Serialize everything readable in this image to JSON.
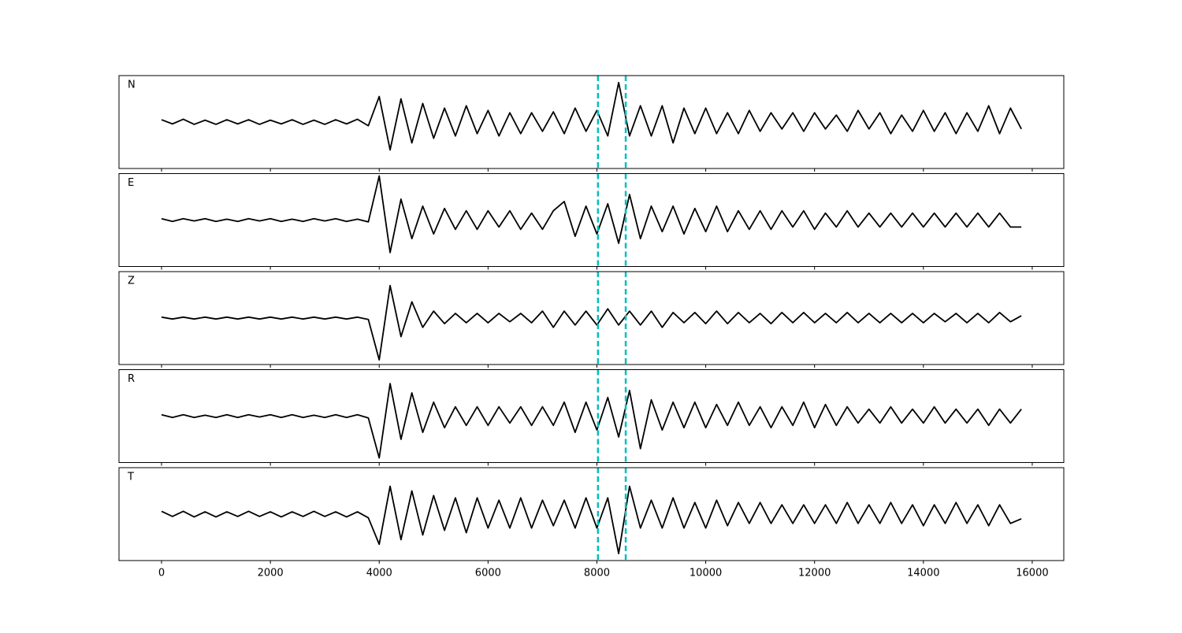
{
  "chart_data": {
    "type": "line",
    "x": [
      0,
      200,
      400,
      600,
      800,
      1000,
      1200,
      1400,
      1600,
      1800,
      2000,
      2200,
      2400,
      2600,
      2800,
      3000,
      3200,
      3400,
      3600,
      3800,
      4000,
      4200,
      4400,
      4600,
      4800,
      5000,
      5200,
      5400,
      5600,
      5800,
      6000,
      6200,
      6400,
      6600,
      6800,
      7000,
      7200,
      7400,
      7600,
      7800,
      8000,
      8200,
      8400,
      8600,
      8800,
      9000,
      9200,
      9400,
      9600,
      9800,
      10000,
      10200,
      10400,
      10600,
      10800,
      11000,
      11200,
      11400,
      11600,
      11800,
      12000,
      12200,
      12400,
      12600,
      12800,
      13000,
      13200,
      13400,
      13600,
      13800,
      14000,
      14200,
      14400,
      14600,
      14800,
      15000,
      15200,
      15400,
      15600,
      15800
    ],
    "series": [
      {
        "name": "N",
        "color": "#000000",
        "values": [
          0.05,
          -0.04,
          0.06,
          -0.05,
          0.04,
          -0.05,
          0.05,
          -0.04,
          0.05,
          -0.05,
          0.04,
          -0.04,
          0.05,
          -0.05,
          0.04,
          -0.05,
          0.05,
          -0.04,
          0.06,
          -0.08,
          0.55,
          -0.6,
          0.5,
          -0.45,
          0.4,
          -0.35,
          0.3,
          -0.3,
          0.35,
          -0.25,
          0.25,
          -0.3,
          0.2,
          -0.25,
          0.2,
          -0.2,
          0.22,
          -0.25,
          0.3,
          -0.2,
          0.25,
          -0.3,
          0.85,
          -0.3,
          0.35,
          -0.3,
          0.35,
          -0.45,
          0.3,
          -0.25,
          0.3,
          -0.25,
          0.2,
          -0.25,
          0.25,
          -0.2,
          0.2,
          -0.15,
          0.2,
          -0.2,
          0.2,
          -0.15,
          0.15,
          -0.2,
          0.25,
          -0.15,
          0.2,
          -0.25,
          0.15,
          -0.2,
          0.25,
          -0.2,
          0.2,
          -0.25,
          0.2,
          -0.2,
          0.35,
          -0.25,
          0.3,
          -0.15
        ]
      },
      {
        "name": "E",
        "color": "#000000",
        "values": [
          0.03,
          -0.03,
          0.03,
          -0.02,
          0.03,
          -0.03,
          0.02,
          -0.03,
          0.03,
          -0.02,
          0.03,
          -0.03,
          0.02,
          -0.03,
          0.03,
          -0.02,
          0.03,
          -0.03,
          0.02,
          -0.04,
          0.95,
          -0.7,
          0.45,
          -0.4,
          0.3,
          -0.3,
          0.25,
          -0.2,
          0.2,
          -0.2,
          0.2,
          -0.15,
          0.2,
          -0.2,
          0.15,
          -0.2,
          0.2,
          0.4,
          -0.35,
          0.3,
          -0.3,
          0.35,
          -0.5,
          0.55,
          -0.4,
          0.3,
          -0.25,
          0.3,
          -0.3,
          0.25,
          -0.25,
          0.3,
          -0.25,
          0.2,
          -0.2,
          0.2,
          -0.2,
          0.2,
          -0.15,
          0.2,
          -0.2,
          0.15,
          -0.15,
          0.2,
          -0.15,
          0.15,
          -0.15,
          0.15,
          -0.15,
          0.15,
          -0.15,
          0.15,
          -0.15,
          0.15,
          -0.15,
          0.15,
          -0.15,
          0.15,
          -0.15,
          -0.15
        ]
      },
      {
        "name": "Z",
        "color": "#000000",
        "values": [
          0.02,
          -0.02,
          0.02,
          -0.02,
          0.02,
          -0.02,
          0.02,
          -0.02,
          0.02,
          -0.02,
          0.02,
          -0.02,
          0.02,
          -0.02,
          0.02,
          -0.02,
          0.02,
          -0.02,
          0.02,
          -0.03,
          -0.9,
          0.7,
          -0.4,
          0.35,
          -0.2,
          0.15,
          -0.12,
          0.1,
          -0.1,
          0.1,
          -0.1,
          0.1,
          -0.08,
          0.1,
          -0.1,
          0.15,
          -0.2,
          0.15,
          -0.15,
          0.15,
          -0.15,
          0.2,
          -0.15,
          0.15,
          -0.15,
          0.15,
          -0.2,
          0.12,
          -0.1,
          0.12,
          -0.12,
          0.15,
          -0.12,
          0.12,
          -0.1,
          0.1,
          -0.12,
          0.12,
          -0.1,
          0.12,
          -0.1,
          0.1,
          -0.1,
          0.12,
          -0.1,
          0.1,
          -0.1,
          0.1,
          -0.1,
          0.1,
          -0.1,
          0.1,
          -0.08,
          0.1,
          -0.1,
          0.1,
          -0.1,
          0.12,
          -0.08,
          0.05
        ]
      },
      {
        "name": "R",
        "color": "#000000",
        "values": [
          0.03,
          -0.03,
          0.03,
          -0.03,
          0.02,
          -0.03,
          0.03,
          -0.03,
          0.03,
          -0.02,
          0.03,
          -0.03,
          0.03,
          -0.03,
          0.02,
          -0.03,
          0.03,
          -0.03,
          0.03,
          -0.04,
          -0.9,
          0.7,
          -0.5,
          0.5,
          -0.35,
          0.3,
          -0.25,
          0.2,
          -0.2,
          0.2,
          -0.2,
          0.2,
          -0.15,
          0.2,
          -0.2,
          0.2,
          -0.2,
          0.3,
          -0.35,
          0.3,
          -0.3,
          0.4,
          -0.45,
          0.55,
          -0.7,
          0.35,
          -0.3,
          0.3,
          -0.25,
          0.3,
          -0.25,
          0.25,
          -0.2,
          0.3,
          -0.2,
          0.2,
          -0.25,
          0.2,
          -0.2,
          0.3,
          -0.25,
          0.25,
          -0.2,
          0.2,
          -0.15,
          0.15,
          -0.15,
          0.2,
          -0.15,
          0.15,
          -0.15,
          0.2,
          -0.15,
          0.15,
          -0.15,
          0.15,
          -0.2,
          0.15,
          -0.15,
          0.15
        ]
      },
      {
        "name": "T",
        "color": "#000000",
        "values": [
          0.06,
          -0.05,
          0.06,
          -0.06,
          0.05,
          -0.06,
          0.05,
          -0.05,
          0.06,
          -0.05,
          0.05,
          -0.06,
          0.05,
          -0.05,
          0.06,
          -0.05,
          0.05,
          -0.06,
          0.05,
          -0.08,
          -0.65,
          0.6,
          -0.55,
          0.5,
          -0.45,
          0.4,
          -0.35,
          0.35,
          -0.4,
          0.35,
          -0.3,
          0.3,
          -0.3,
          0.35,
          -0.3,
          0.3,
          -0.25,
          0.3,
          -0.3,
          0.35,
          -0.3,
          0.35,
          -0.85,
          0.6,
          -0.3,
          0.3,
          -0.3,
          0.35,
          -0.3,
          0.25,
          -0.3,
          0.3,
          -0.25,
          0.25,
          -0.2,
          0.25,
          -0.2,
          0.2,
          -0.2,
          0.2,
          -0.2,
          0.2,
          -0.2,
          0.25,
          -0.2,
          0.2,
          -0.2,
          0.25,
          -0.2,
          0.2,
          -0.25,
          0.2,
          -0.2,
          0.25,
          -0.2,
          0.2,
          -0.25,
          0.2,
          -0.2,
          -0.1
        ]
      }
    ],
    "xlim": [
      -782,
      16580
    ],
    "xticks": [
      0,
      2000,
      4000,
      6000,
      8000,
      10000,
      12000,
      14000,
      16000
    ],
    "ylim": [
      -1,
      1
    ],
    "vlines": {
      "x": [
        8020,
        8530
      ],
      "color": "#00bfbf"
    }
  }
}
